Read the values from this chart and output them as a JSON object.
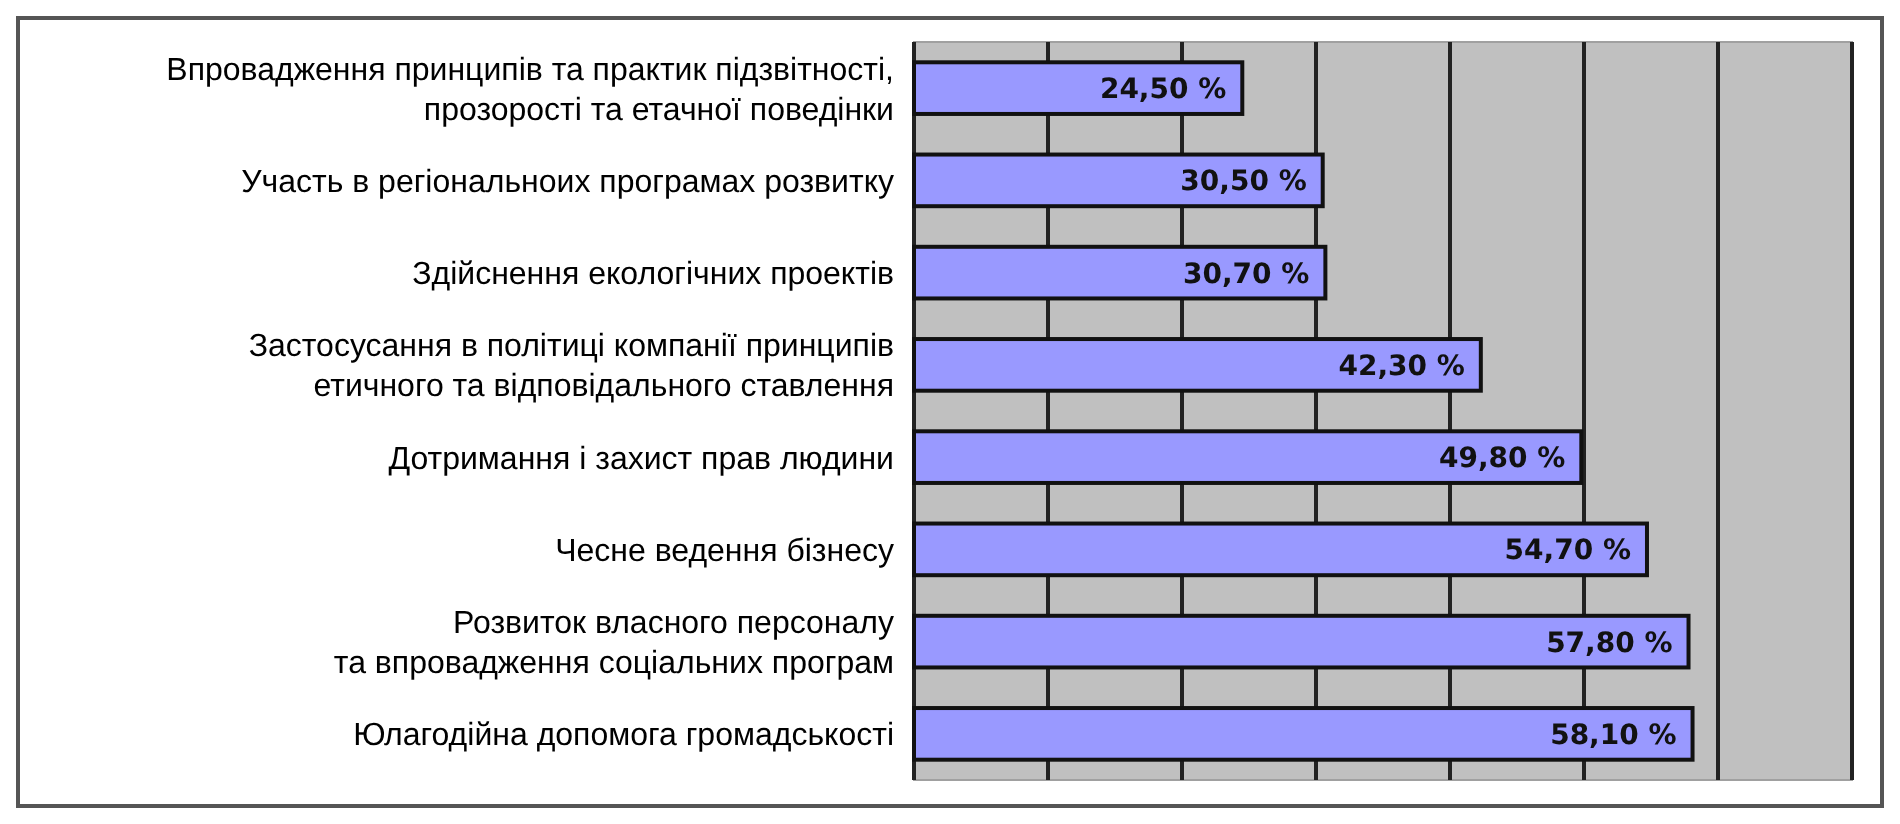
{
  "chart_data": {
    "type": "bar",
    "orientation": "horizontal",
    "categories": [
      "Впровадження принципів та практик підзвітності,\nпрозорості та етачної поведінки",
      "Участь в регіональноих програмах розвитку",
      "Здійснення екологічних проектів",
      "Застосусання в політиці компанії принципів\nетичного та відповідального ставлення",
      "Дотримання і захист прав людини",
      "Чесне ведення бізнесу",
      "Розвиток власного персоналу\nта впровадження соціальних програм",
      "Юлагодійна допомога громадськості"
    ],
    "values": [
      24.5,
      30.5,
      30.7,
      42.3,
      49.8,
      54.7,
      57.8,
      58.1
    ],
    "value_labels": [
      "24,50 %",
      "30,50 %",
      "30,70 %",
      "42,30 %",
      "49,80 %",
      "54,70 %",
      "57,80 %",
      "58,10 %"
    ],
    "color": "#9999ff",
    "xlim": [
      0,
      70
    ],
    "xticks": [
      {
        "value": 0,
        "label": null
      },
      {
        "value": 10,
        "label": null
      },
      {
        "value": 20,
        "label": null
      },
      {
        "value": 30,
        "label": null
      },
      {
        "value": 40,
        "label": null
      },
      {
        "value": 50,
        "label": null
      },
      {
        "value": 60,
        "label": null
      },
      {
        "value": 70,
        "label": null
      }
    ],
    "grid": "x",
    "tick_labels": "y"
  }
}
